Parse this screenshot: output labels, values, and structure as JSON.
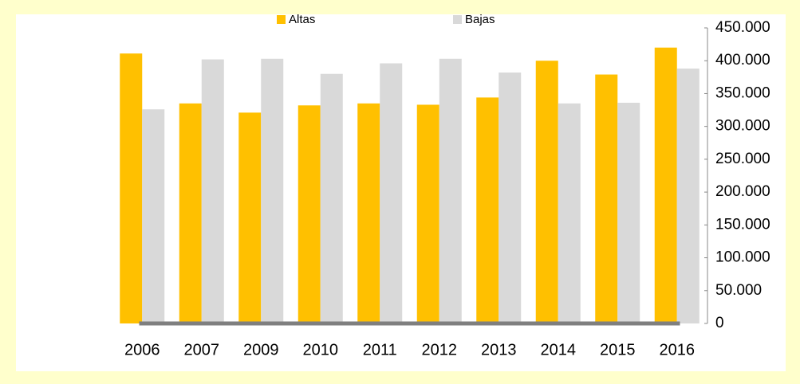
{
  "chart_data": {
    "type": "bar",
    "categories": [
      "2006",
      "2007",
      "2009",
      "2010",
      "2011",
      "2012",
      "2013",
      "2014",
      "2015",
      "2016"
    ],
    "series": [
      {
        "name": "Altas",
        "color": "#ffc000",
        "values": [
          411000,
          335000,
          321000,
          332000,
          335000,
          333000,
          344000,
          400000,
          379000,
          420000
        ]
      },
      {
        "name": "Bajas",
        "color": "#d9d9d9",
        "values": [
          326000,
          402000,
          403000,
          380000,
          396000,
          403000,
          382000,
          335000,
          336000,
          388000
        ]
      }
    ],
    "ylim": [
      0,
      450000
    ],
    "yticks": [
      0,
      {
        "value": 50000,
        "label": "50.000"
      },
      {
        "value": 100000,
        "label": "100.000"
      },
      {
        "value": 150000,
        "label": "150.000"
      },
      {
        "value": 200000,
        "label": "200.000"
      },
      {
        "value": 250000,
        "label": "250.000"
      },
      {
        "value": 300000,
        "label": "300.000"
      },
      {
        "value": 350000,
        "label": "350.000"
      },
      {
        "value": 400000,
        "label": "400.000"
      },
      {
        "value": 450000,
        "label": "450.000"
      }
    ],
    "y_axis_side": "right",
    "grid": false,
    "legend": "top"
  }
}
